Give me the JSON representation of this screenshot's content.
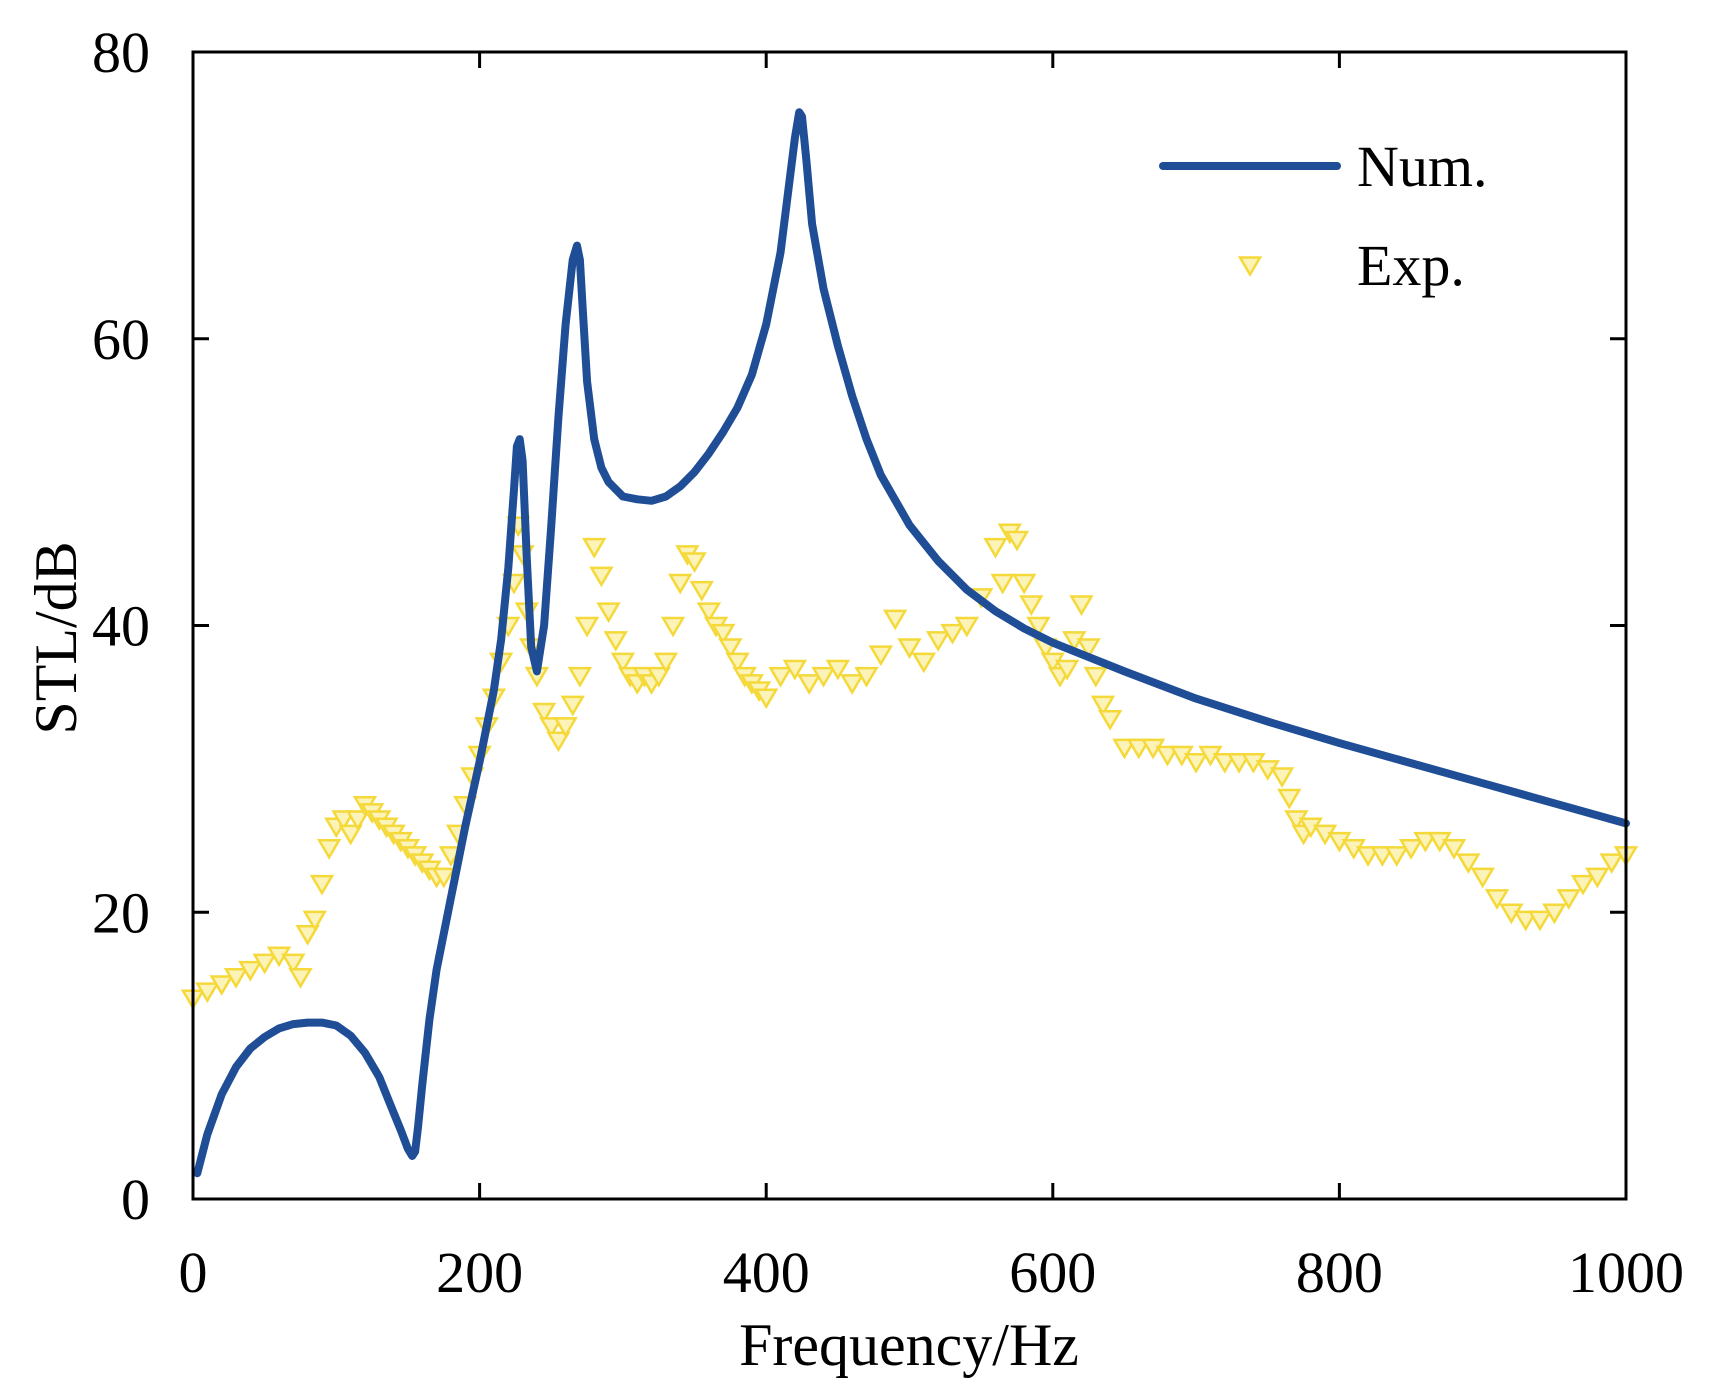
{
  "chart_data": {
    "type": "line",
    "title": "",
    "xlabel": "Frequency/Hz",
    "ylabel": "STL/dB",
    "xlim": [
      0,
      1000
    ],
    "ylim": [
      0,
      80
    ],
    "xticks": [
      0,
      200,
      400,
      600,
      800,
      1000
    ],
    "yticks": [
      0,
      20,
      40,
      60,
      80
    ],
    "xtick_labels": [
      "0",
      "200",
      "400",
      "600",
      "800",
      "1000"
    ],
    "ytick_labels": [
      "0",
      "20",
      "40",
      "60",
      "80"
    ],
    "grid": false,
    "legend_position": "top-right",
    "series": [
      {
        "name": "Num.",
        "style": "line",
        "color": "#1f4e96",
        "x": [
          3,
          10,
          20,
          30,
          40,
          50,
          60,
          70,
          80,
          90,
          100,
          110,
          120,
          130,
          138,
          145,
          150,
          153,
          155,
          157,
          160,
          165,
          170,
          180,
          190,
          200,
          210,
          215,
          220,
          224,
          226,
          228,
          230,
          233,
          236,
          240,
          245,
          250,
          255,
          260,
          265,
          268,
          270,
          272,
          275,
          280,
          285,
          290,
          300,
          310,
          320,
          330,
          340,
          350,
          360,
          370,
          380,
          390,
          400,
          410,
          415,
          420,
          423,
          425,
          428,
          432,
          440,
          450,
          460,
          470,
          480,
          500,
          520,
          540,
          560,
          580,
          600,
          620,
          650,
          700,
          750,
          800,
          850,
          900,
          950,
          1000
        ],
        "y": [
          1.8,
          4.5,
          7.3,
          9.2,
          10.5,
          11.3,
          11.9,
          12.2,
          12.3,
          12.3,
          12.1,
          11.4,
          10.2,
          8.5,
          6.5,
          4.8,
          3.5,
          3.0,
          3.3,
          5.0,
          8.0,
          12.5,
          16.0,
          21.0,
          26.0,
          30.5,
          35.5,
          39.0,
          44.0,
          49.5,
          52.5,
          53.0,
          51.5,
          44.5,
          38.5,
          36.8,
          40.0,
          47.0,
          54.5,
          61.0,
          65.5,
          66.5,
          65.5,
          62.0,
          57.0,
          53.0,
          51.0,
          50.0,
          49.0,
          48.8,
          48.7,
          49.0,
          49.7,
          50.7,
          52.0,
          53.5,
          55.2,
          57.5,
          61.0,
          66.0,
          70.0,
          74.0,
          75.8,
          75.5,
          72.5,
          68.0,
          63.5,
          59.5,
          56.0,
          53.0,
          50.5,
          47.0,
          44.5,
          42.5,
          41.0,
          39.8,
          38.8,
          38.0,
          36.8,
          34.9,
          33.3,
          31.8,
          30.4,
          29.0,
          27.6,
          26.2
        ]
      },
      {
        "name": "Exp.",
        "style": "markers",
        "marker": "triangle-down",
        "color": "#f5d93a",
        "x": [
          0,
          10,
          20,
          30,
          40,
          50,
          60,
          70,
          75,
          80,
          85,
          90,
          95,
          100,
          105,
          110,
          115,
          120,
          125,
          130,
          135,
          140,
          145,
          150,
          155,
          160,
          165,
          170,
          175,
          180,
          185,
          190,
          195,
          200,
          205,
          210,
          215,
          220,
          224,
          227,
          230,
          233,
          236,
          240,
          245,
          250,
          255,
          260,
          265,
          270,
          275,
          280,
          285,
          290,
          295,
          300,
          305,
          310,
          315,
          320,
          325,
          330,
          335,
          340,
          345,
          350,
          355,
          360,
          365,
          370,
          375,
          380,
          385,
          390,
          395,
          400,
          410,
          420,
          430,
          440,
          450,
          460,
          470,
          480,
          490,
          500,
          510,
          520,
          530,
          540,
          550,
          560,
          565,
          570,
          575,
          580,
          585,
          590,
          595,
          600,
          605,
          610,
          615,
          620,
          625,
          630,
          635,
          640,
          650,
          660,
          670,
          680,
          690,
          700,
          710,
          720,
          730,
          740,
          750,
          760,
          765,
          770,
          775,
          780,
          790,
          800,
          810,
          820,
          830,
          840,
          850,
          860,
          870,
          880,
          890,
          900,
          910,
          920,
          930,
          940,
          950,
          960,
          970,
          980,
          990,
          1000
        ],
        "y": [
          14.0,
          14.5,
          15.0,
          15.5,
          16.0,
          16.5,
          17.0,
          16.5,
          15.5,
          18.5,
          19.5,
          22.0,
          24.5,
          26.0,
          26.5,
          25.5,
          26.5,
          27.5,
          27.0,
          26.5,
          26.0,
          25.5,
          25.0,
          24.5,
          24.0,
          23.5,
          23.0,
          22.5,
          22.5,
          24.0,
          25.5,
          27.5,
          29.5,
          31.0,
          33.0,
          35.0,
          37.5,
          40.0,
          43.0,
          47.0,
          45.0,
          41.0,
          38.5,
          36.5,
          34.0,
          33.0,
          32.0,
          33.0,
          34.5,
          36.5,
          40.0,
          45.5,
          43.5,
          41.0,
          39.0,
          37.5,
          36.5,
          36.0,
          36.5,
          36.0,
          36.5,
          37.5,
          40.0,
          43.0,
          45.0,
          44.5,
          42.5,
          41.0,
          40.0,
          39.5,
          38.5,
          37.5,
          36.5,
          36.0,
          35.5,
          35.0,
          36.5,
          37.0,
          36.0,
          36.5,
          37.0,
          36.0,
          36.5,
          38.0,
          40.5,
          38.5,
          37.5,
          39.0,
          39.5,
          40.0,
          42.0,
          45.5,
          43.0,
          46.5,
          46.0,
          43.0,
          41.5,
          40.0,
          38.5,
          37.5,
          36.5,
          37.0,
          39.0,
          41.5,
          38.5,
          36.5,
          34.5,
          33.5,
          31.5,
          31.5,
          31.5,
          31.0,
          31.0,
          30.5,
          31.0,
          30.5,
          30.5,
          30.5,
          30.0,
          29.5,
          28.0,
          26.5,
          25.5,
          26.0,
          25.5,
          25.0,
          24.5,
          24.0,
          24.0,
          24.0,
          24.5,
          25.0,
          25.0,
          24.5,
          23.5,
          22.5,
          21.0,
          20.0,
          19.5,
          19.5,
          20.0,
          21.0,
          22.0,
          22.5,
          23.5,
          24.0
        ]
      }
    ]
  }
}
